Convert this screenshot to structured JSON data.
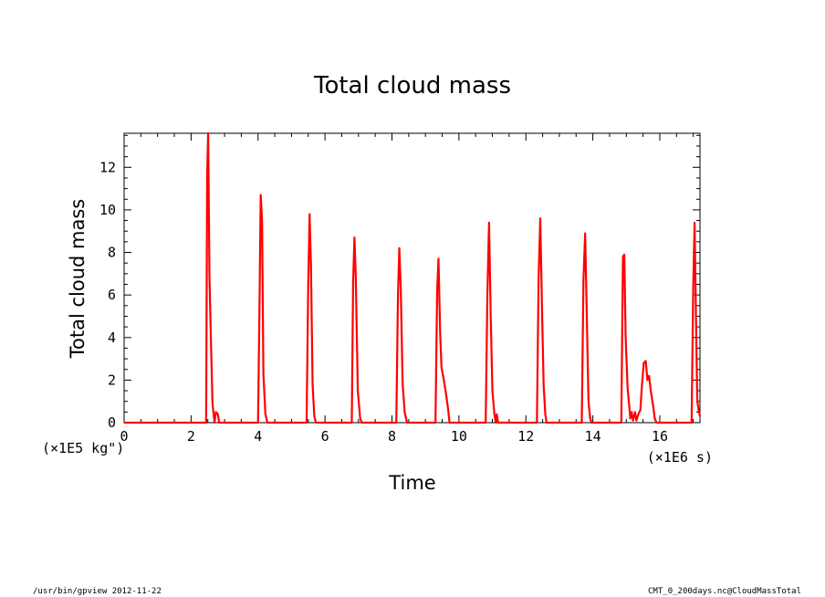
{
  "chart_data": {
    "type": "line",
    "title": "Total cloud mass",
    "xlabel": "Time",
    "ylabel": "Total cloud mass",
    "x_unit_label": "(×1E6 s)",
    "y_unit_label": "(×1E5 kg\")",
    "xlim": [
      0,
      17.2
    ],
    "ylim": [
      0,
      13.6
    ],
    "x_ticks": [
      "0",
      "2",
      "4",
      "6",
      "8",
      "10",
      "12",
      "14",
      "16"
    ],
    "y_ticks": [
      "0",
      "2",
      "4",
      "6",
      "8",
      "10",
      "12"
    ],
    "line_color": "#ff0000",
    "grid": false,
    "series": [
      {
        "name": "",
        "points": [
          [
            0,
            0
          ],
          [
            2.45,
            0
          ],
          [
            2.48,
            11.6
          ],
          [
            2.51,
            13.6
          ],
          [
            2.55,
            6.8
          ],
          [
            2.6,
            3.4
          ],
          [
            2.64,
            0.9
          ],
          [
            2.7,
            0
          ],
          [
            2.74,
            0.5
          ],
          [
            2.8,
            0.4
          ],
          [
            2.84,
            0
          ],
          [
            4.0,
            0
          ],
          [
            4.04,
            5.0
          ],
          [
            4.08,
            10.7
          ],
          [
            4.12,
            9.5
          ],
          [
            4.16,
            2.3
          ],
          [
            4.22,
            0.4
          ],
          [
            4.28,
            0
          ],
          [
            5.45,
            0
          ],
          [
            5.5,
            6.5
          ],
          [
            5.54,
            9.8
          ],
          [
            5.58,
            7.5
          ],
          [
            5.63,
            1.8
          ],
          [
            5.68,
            0.3
          ],
          [
            5.73,
            0
          ],
          [
            6.8,
            0
          ],
          [
            6.84,
            6.6
          ],
          [
            6.88,
            8.7
          ],
          [
            6.92,
            6.8
          ],
          [
            6.98,
            1.5
          ],
          [
            7.05,
            0.2
          ],
          [
            7.1,
            0
          ],
          [
            8.13,
            0
          ],
          [
            8.18,
            6.0
          ],
          [
            8.22,
            8.2
          ],
          [
            8.26,
            6.5
          ],
          [
            8.32,
            1.8
          ],
          [
            8.38,
            0.5
          ],
          [
            8.45,
            0
          ],
          [
            9.3,
            0
          ],
          [
            9.35,
            6.2
          ],
          [
            9.39,
            7.7
          ],
          [
            9.44,
            4.2
          ],
          [
            9.48,
            2.6
          ],
          [
            9.55,
            2.0
          ],
          [
            9.62,
            1.3
          ],
          [
            9.68,
            0.6
          ],
          [
            9.72,
            0
          ],
          [
            10.8,
            0
          ],
          [
            10.85,
            6.0
          ],
          [
            10.9,
            9.4
          ],
          [
            10.95,
            5.0
          ],
          [
            11.0,
            1.5
          ],
          [
            11.06,
            0.4
          ],
          [
            11.1,
            0
          ],
          [
            11.13,
            0.4
          ],
          [
            11.17,
            0
          ],
          [
            12.33,
            0
          ],
          [
            12.38,
            6.8
          ],
          [
            12.43,
            9.6
          ],
          [
            12.48,
            5.5
          ],
          [
            12.53,
            1.8
          ],
          [
            12.58,
            0.4
          ],
          [
            12.62,
            0
          ],
          [
            13.67,
            0
          ],
          [
            13.72,
            6.7
          ],
          [
            13.77,
            8.9
          ],
          [
            13.82,
            5.0
          ],
          [
            13.87,
            1.0
          ],
          [
            13.92,
            0.2
          ],
          [
            13.96,
            0
          ],
          [
            14.85,
            0
          ],
          [
            14.9,
            7.8
          ],
          [
            14.94,
            7.9
          ],
          [
            14.98,
            4.0
          ],
          [
            15.04,
            1.6
          ],
          [
            15.08,
            0.9
          ],
          [
            15.12,
            0.2
          ],
          [
            15.16,
            0.5
          ],
          [
            15.2,
            0.1
          ],
          [
            15.26,
            0.5
          ],
          [
            15.3,
            0.1
          ],
          [
            15.36,
            0.4
          ],
          [
            15.42,
            0.6
          ],
          [
            15.46,
            1.6
          ],
          [
            15.52,
            2.8
          ],
          [
            15.58,
            2.9
          ],
          [
            15.63,
            2.0
          ],
          [
            15.68,
            2.2
          ],
          [
            15.73,
            1.5
          ],
          [
            15.8,
            0.8
          ],
          [
            15.85,
            0.2
          ],
          [
            15.9,
            0
          ],
          [
            16.95,
            0
          ],
          [
            17.0,
            6.5
          ],
          [
            17.04,
            9.4
          ],
          [
            17.08,
            5.0
          ],
          [
            17.12,
            1.0
          ],
          [
            17.17,
            0.5
          ],
          [
            17.2,
            0.3
          ]
        ]
      }
    ]
  },
  "footer": {
    "left": "/usr/bin/gpview   2012-11-22",
    "right": "CMT_0_200days.nc@CloudMassTotal"
  }
}
